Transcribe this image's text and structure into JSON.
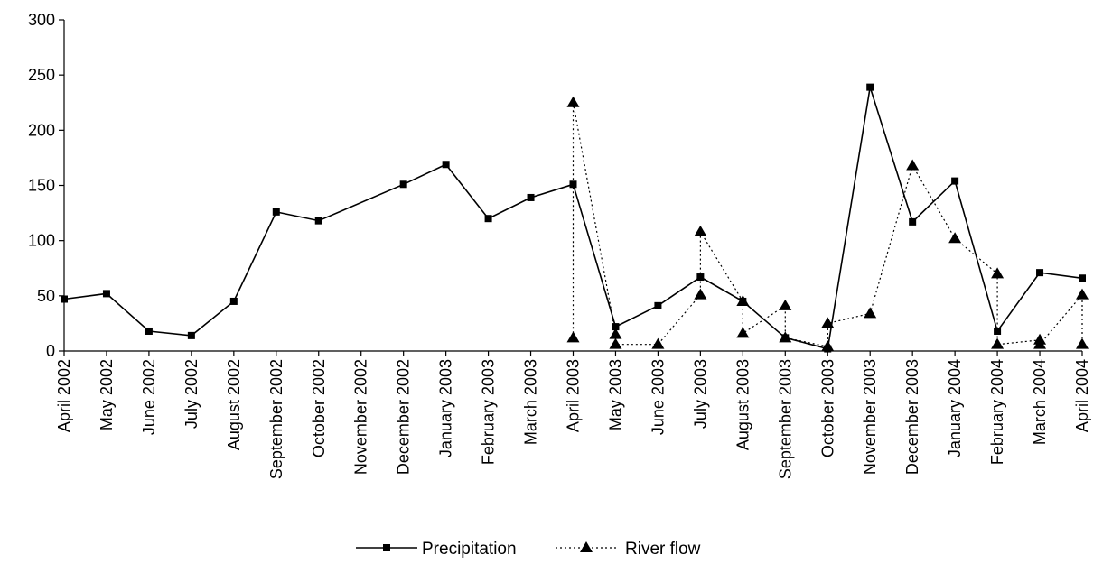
{
  "chart_data": {
    "type": "line",
    "categories": [
      "April 2002",
      "May 2002",
      "June 2002",
      "July 2002",
      "August 2002",
      "September 2002",
      "October 2002",
      "November 2002",
      "December 2002",
      "January 2003",
      "February 2003",
      "March 2003",
      "April 2003",
      "May 2003",
      "June 2003",
      "July 2003",
      "August 2003",
      "September 2003",
      "October 2003",
      "November 2003",
      "December 2003",
      "January 2004",
      "February 2004",
      "March 2004",
      "April 2004"
    ],
    "ylim": [
      0,
      300
    ],
    "yticks": [
      0,
      50,
      100,
      150,
      200,
      250,
      300
    ],
    "grid": false,
    "legend_position": "bottom-center",
    "series": [
      {
        "name": "Precipitation",
        "style": "solid",
        "marker": "square",
        "color": "#000000",
        "points": [
          {
            "x": "April 2002",
            "y": 47
          },
          {
            "x": "May 2002",
            "y": 52
          },
          {
            "x": "June 2002",
            "y": 18
          },
          {
            "x": "July 2002",
            "y": 14
          },
          {
            "x": "August 2002",
            "y": 45
          },
          {
            "x": "September 2002",
            "y": 126
          },
          {
            "x": "October 2002",
            "y": 118
          },
          {
            "x": "December 2002",
            "y": 151
          },
          {
            "x": "January 2003",
            "y": 169
          },
          {
            "x": "February 2003",
            "y": 120
          },
          {
            "x": "March 2003",
            "y": 139
          },
          {
            "x": "April 2003",
            "y": 151
          },
          {
            "x": "May 2003",
            "y": 22
          },
          {
            "x": "June 2003",
            "y": 41
          },
          {
            "x": "July 2003",
            "y": 67
          },
          {
            "x": "August 2003",
            "y": 45
          },
          {
            "x": "September 2003",
            "y": 12
          },
          {
            "x": "October 2003",
            "y": 2
          },
          {
            "x": "November 2003",
            "y": 239
          },
          {
            "x": "December 2003",
            "y": 117
          },
          {
            "x": "January 2004",
            "y": 154
          },
          {
            "x": "February 2004",
            "y": 18
          },
          {
            "x": "March 2004",
            "y": 71
          },
          {
            "x": "April 2004",
            "y": 66
          }
        ]
      },
      {
        "name": "River flow",
        "style": "dotted",
        "marker": "triangle",
        "color": "#000000",
        "points": [
          {
            "x": "April 2003",
            "y": 12
          },
          {
            "x": "April 2003",
            "y": 225
          },
          {
            "x": "May 2003",
            "y": 15
          },
          {
            "x": "May 2003",
            "y": 6
          },
          {
            "x": "June 2003",
            "y": 6
          },
          {
            "x": "July 2003",
            "y": 51
          },
          {
            "x": "July 2003",
            "y": 108
          },
          {
            "x": "August 2003",
            "y": 45
          },
          {
            "x": "August 2003",
            "y": 16
          },
          {
            "x": "September 2003",
            "y": 41
          },
          {
            "x": "September 2003",
            "y": 12
          },
          {
            "x": "October 2003",
            "y": 4
          },
          {
            "x": "October 2003",
            "y": 25
          },
          {
            "x": "November 2003",
            "y": 34
          },
          {
            "x": "December 2003",
            "y": 168
          },
          {
            "x": "January 2004",
            "y": 102
          },
          {
            "x": "February 2004",
            "y": 70
          },
          {
            "x": "February 2004",
            "y": 6
          },
          {
            "x": "March 2004",
            "y": 10
          },
          {
            "x": "March 2004",
            "y": 6
          },
          {
            "x": "April 2004",
            "y": 51
          },
          {
            "x": "April 2004",
            "y": 6
          }
        ]
      }
    ]
  }
}
